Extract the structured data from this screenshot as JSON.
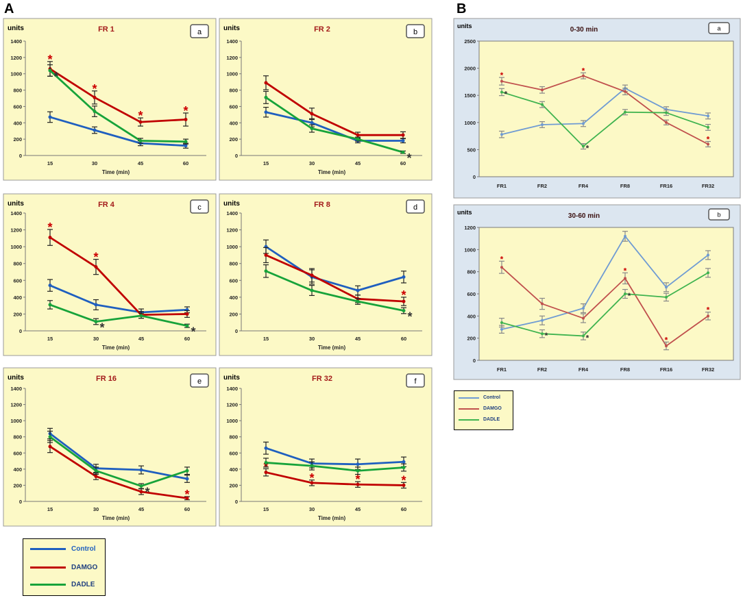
{
  "sections": {
    "A": "A",
    "B": "B"
  },
  "styles": {
    "colors": {
      "Control": "#1f5fbf",
      "DAMGO": "#c00000",
      "DADLE": "#17a33a"
    },
    "colorsB": {
      "Control": "#6f9bd3",
      "DAMGO": "#c0504d",
      "DADLE": "#3fb34f"
    },
    "panelBgA": "#fcf9c6",
    "panelBgB": "#dce6f0",
    "plotBg": "#fcf9c6",
    "titleColor": "#a31a1a",
    "starDamgo": "#cc0000",
    "starDadle": "#333333"
  },
  "legendA": {
    "items": [
      "Control",
      "DAMGO",
      "DADLE"
    ]
  },
  "legendB": {
    "items": [
      "Control",
      "DAMGO",
      "DADLE"
    ]
  },
  "chart_data": [
    {
      "id": "a",
      "type": "line",
      "title": "FR 1",
      "tag": "a",
      "ylabel": "units",
      "xlabel": "Time (min)",
      "categories": [
        "15",
        "30",
        "45",
        "60"
      ],
      "ylim": [
        0,
        1400
      ],
      "yticks": [
        0,
        200,
        400,
        600,
        800,
        1000,
        1200,
        1400
      ],
      "series": [
        {
          "name": "Control",
          "values": [
            470,
            310,
            150,
            120
          ],
          "errors": [
            65,
            40,
            30,
            30
          ]
        },
        {
          "name": "DAMGO",
          "values": [
            1060,
            710,
            410,
            440
          ],
          "errors": [
            90,
            80,
            50,
            80
          ],
          "stars": [
            0,
            1,
            2,
            3
          ]
        },
        {
          "name": "DADLE",
          "values": [
            1040,
            540,
            180,
            170
          ],
          "errors": [
            70,
            65,
            30,
            30
          ],
          "stars": [
            0
          ]
        }
      ]
    },
    {
      "id": "b",
      "type": "line",
      "title": "FR 2",
      "tag": "b",
      "ylabel": "units",
      "xlabel": "Time (min)",
      "categories": [
        "15",
        "30",
        "45",
        "60"
      ],
      "ylim": [
        0,
        1400
      ],
      "yticks": [
        0,
        200,
        400,
        600,
        800,
        1000,
        1200,
        1400
      ],
      "series": [
        {
          "name": "Control",
          "values": [
            530,
            400,
            180,
            180
          ],
          "errors": [
            60,
            50,
            25,
            25
          ]
        },
        {
          "name": "DAMGO",
          "values": [
            890,
            510,
            250,
            250
          ],
          "errors": [
            85,
            70,
            35,
            40
          ]
        },
        {
          "name": "DADLE",
          "values": [
            710,
            330,
            200,
            40
          ],
          "errors": [
            75,
            45,
            25,
            15
          ],
          "stars": [
            3
          ]
        }
      ]
    },
    {
      "id": "c",
      "type": "line",
      "title": "FR 4",
      "tag": "c",
      "ylabel": "units",
      "xlabel": "Time (min)",
      "categories": [
        "15",
        "30",
        "45",
        "60"
      ],
      "ylim": [
        0,
        1400
      ],
      "yticks": [
        0,
        200,
        400,
        600,
        800,
        1000,
        1200,
        1400
      ],
      "series": [
        {
          "name": "Control",
          "values": [
            540,
            310,
            220,
            250
          ],
          "errors": [
            70,
            60,
            40,
            35
          ]
        },
        {
          "name": "DAMGO",
          "values": [
            1110,
            760,
            190,
            200
          ],
          "errors": [
            95,
            90,
            40,
            40
          ],
          "stars": [
            0,
            1
          ]
        },
        {
          "name": "DADLE",
          "values": [
            310,
            110,
            180,
            60
          ],
          "errors": [
            50,
            35,
            30,
            20
          ],
          "stars": [
            1,
            3
          ]
        }
      ]
    },
    {
      "id": "d",
      "type": "line",
      "title": "FR 8",
      "tag": "d",
      "ylabel": "units",
      "xlabel": "Time (min)",
      "categories": [
        "15",
        "30",
        "45",
        "60"
      ],
      "ylim": [
        0,
        1400
      ],
      "yticks": [
        0,
        200,
        400,
        600,
        800,
        1000,
        1200,
        1400
      ],
      "series": [
        {
          "name": "Control",
          "values": [
            1000,
            640,
            480,
            640
          ],
          "errors": [
            80,
            85,
            55,
            70
          ]
        },
        {
          "name": "DAMGO",
          "values": [
            900,
            660,
            380,
            350
          ],
          "errors": [
            90,
            80,
            45,
            50
          ],
          "stars": [
            3
          ]
        },
        {
          "name": "DADLE",
          "values": [
            710,
            480,
            350,
            240
          ],
          "errors": [
            75,
            60,
            35,
            35
          ],
          "stars": [
            3
          ]
        }
      ]
    },
    {
      "id": "e",
      "type": "line",
      "title": "FR 16",
      "tag": "e",
      "ylabel": "units",
      "xlabel": "Time (min)",
      "categories": [
        "15",
        "30",
        "45",
        "60"
      ],
      "ylim": [
        0,
        1400
      ],
      "yticks": [
        0,
        200,
        400,
        600,
        800,
        1000,
        1200,
        1400
      ],
      "series": [
        {
          "name": "Control",
          "values": [
            840,
            410,
            390,
            280
          ],
          "errors": [
            65,
            50,
            50,
            45
          ]
        },
        {
          "name": "DAMGO",
          "values": [
            680,
            310,
            120,
            40
          ],
          "errors": [
            75,
            40,
            35,
            20
          ],
          "stars": [
            3
          ]
        },
        {
          "name": "DADLE",
          "values": [
            800,
            380,
            190,
            380
          ],
          "errors": [
            70,
            45,
            30,
            45
          ],
          "stars": [
            2
          ]
        }
      ]
    },
    {
      "id": "f",
      "type": "line",
      "title": "FR 32",
      "tag": "f",
      "ylabel": "units",
      "xlabel": "Time (min)",
      "categories": [
        "15",
        "30",
        "45",
        "60"
      ],
      "ylim": [
        0,
        1400
      ],
      "yticks": [
        0,
        200,
        400,
        600,
        800,
        1000,
        1200,
        1400
      ],
      "series": [
        {
          "name": "Control",
          "values": [
            660,
            470,
            460,
            490
          ],
          "errors": [
            75,
            55,
            65,
            60
          ]
        },
        {
          "name": "DAMGO",
          "values": [
            360,
            230,
            210,
            200
          ],
          "errors": [
            45,
            35,
            35,
            35
          ],
          "stars": [
            0,
            1,
            2,
            3
          ]
        },
        {
          "name": "DADLE",
          "values": [
            480,
            440,
            380,
            420
          ],
          "errors": [
            55,
            50,
            45,
            45
          ]
        }
      ]
    },
    {
      "id": "Ba",
      "type": "line",
      "title": "0-30 min",
      "tag": "a",
      "ylabel": "units",
      "xlabel": "",
      "categories": [
        "FR1",
        "FR2",
        "FR4",
        "FR8",
        "FR16",
        "FR32"
      ],
      "ylim": [
        0,
        2500
      ],
      "yticks": [
        0,
        500,
        1000,
        1500,
        2000,
        2500
      ],
      "series": [
        {
          "name": "Control",
          "values": [
            780,
            960,
            980,
            1630,
            1240,
            1120
          ],
          "errors": [
            60,
            55,
            55,
            60,
            50,
            55
          ]
        },
        {
          "name": "DAMGO",
          "values": [
            1760,
            1600,
            1860,
            1570,
            1000,
            600
          ],
          "errors": [
            70,
            60,
            55,
            60,
            45,
            50
          ],
          "stars": [
            0,
            2,
            5
          ]
        },
        {
          "name": "DADLE",
          "values": [
            1560,
            1330,
            560,
            1190,
            1180,
            910
          ],
          "errors": [
            65,
            55,
            50,
            50,
            50,
            55
          ],
          "stars": [
            0,
            2
          ]
        }
      ]
    },
    {
      "id": "Bb",
      "type": "line",
      "title": "30-60 min",
      "tag": "b",
      "ylabel": "units",
      "xlabel": "",
      "categories": [
        "FR1",
        "FR2",
        "FR4",
        "FR8",
        "FR16",
        "FR32"
      ],
      "ylim": [
        0,
        1200
      ],
      "yticks": [
        0,
        200,
        400,
        600,
        800,
        1000,
        1200
      ],
      "series": [
        {
          "name": "Control",
          "values": [
            280,
            360,
            470,
            1120,
            660,
            950
          ],
          "errors": [
            35,
            40,
            40,
            45,
            40,
            40
          ]
        },
        {
          "name": "DAMGO",
          "values": [
            840,
            510,
            380,
            740,
            130,
            400
          ],
          "errors": [
            55,
            50,
            40,
            50,
            35,
            35
          ],
          "stars": [
            0,
            3,
            4,
            5
          ]
        },
        {
          "name": "DADLE",
          "values": [
            340,
            240,
            220,
            600,
            570,
            790
          ],
          "errors": [
            40,
            35,
            35,
            40,
            35,
            40
          ],
          "stars": [
            1,
            2,
            3
          ]
        }
      ]
    }
  ]
}
